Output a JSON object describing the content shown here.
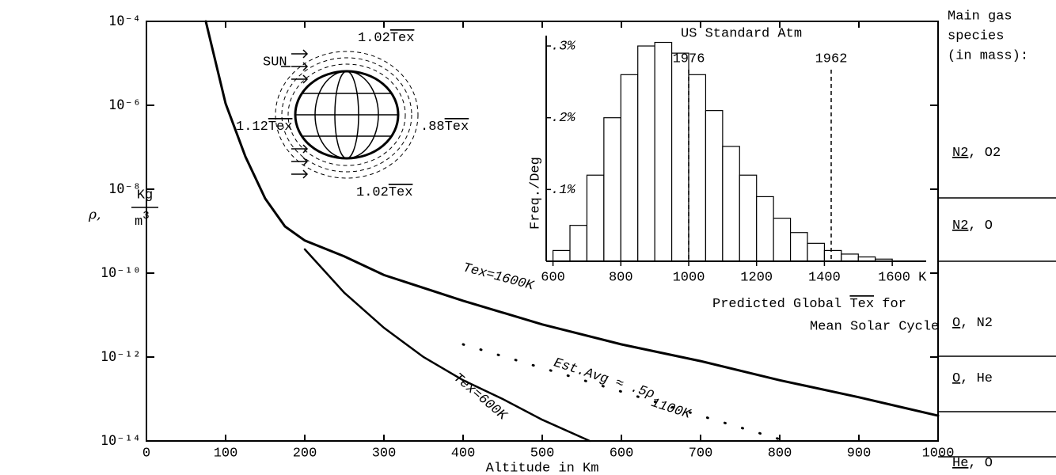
{
  "chart_data": [
    {
      "type": "line",
      "yscale": "log",
      "xlabel": "Altitude in Km",
      "ylabel": {
        "symbol": "ρ,",
        "numerator": "Kg",
        "denominator": "m",
        "exponent": "3"
      },
      "xlim": [
        0,
        1000
      ],
      "xticks": [
        0,
        100,
        200,
        300,
        400,
        500,
        600,
        700,
        800,
        900,
        1000
      ],
      "ylim": [
        1e-14,
        0.0001
      ],
      "yticks": [
        {
          "value": 1e-14,
          "label": "10⁻¹⁴"
        },
        {
          "value": 1e-12,
          "label": "10⁻¹²"
        },
        {
          "value": 1e-10,
          "label": "10⁻¹⁰"
        },
        {
          "value": 1e-08,
          "label": "10⁻⁸"
        },
        {
          "value": 1e-06,
          "label": "10⁻⁶"
        },
        {
          "value": 0.0001,
          "label": "10⁻⁴"
        }
      ],
      "series": [
        {
          "name": "Tex=1600K",
          "color": "#000000",
          "width": 3,
          "dash": "solid",
          "x": [
            75,
            100,
            125,
            150,
            175,
            200,
            250,
            300,
            400,
            500,
            600,
            700,
            800,
            900,
            1000
          ],
          "values": [
            0.0001,
            1.1e-06,
            6e-08,
            6e-09,
            1.3e-09,
            6e-10,
            2.5e-10,
            9e-11,
            2.2e-11,
            6e-12,
            2e-12,
            8e-13,
            2.8e-13,
            1.1e-13,
            4e-14
          ]
        },
        {
          "name": "Tex=600K",
          "color": "#000000",
          "width": 2.5,
          "dash": "solid",
          "x": [
            200,
            250,
            300,
            350,
            400,
            450,
            500,
            560
          ],
          "values": [
            3.7e-10,
            3.4e-11,
            5e-12,
            1e-12,
            2.8e-13,
            1e-13,
            3.2e-14,
            1e-14
          ]
        },
        {
          "name": "Est.Avg ≈ .5ρ",
          "name_subscript": "1100K",
          "color": "#000000",
          "width": 3,
          "dash": "dotted",
          "x": [
            400,
            500,
            600,
            700,
            800
          ],
          "values": [
            2e-12,
            5.5e-13,
            1.5e-13,
            4e-14,
            1.1e-14
          ]
        }
      ],
      "globe_labels": {
        "sun": "SUN",
        "top": {
          "prefix": "1.02",
          "overlined": "Tex"
        },
        "left": {
          "prefix": "1.12",
          "overlined": "Tex"
        },
        "right": {
          "prefix": ".88",
          "overlined": "Tex"
        },
        "bottom": {
          "prefix": "1.02",
          "overlined": "Tex"
        }
      },
      "species_title": [
        "Main gas",
        "species",
        "(in mass):"
      ],
      "species": [
        {
          "main": "N2",
          "other": ", O2"
        },
        {
          "main": "N2",
          "other": ", O"
        },
        {
          "main": "O",
          "other": ", N2"
        },
        {
          "main": "O",
          "other": ", He"
        },
        {
          "main": "He",
          "other": ", O"
        }
      ]
    },
    {
      "type": "histogram",
      "title": "US Standard Atm",
      "ylabel": "Freq./Deg",
      "xlabel": {
        "before": "Predicted Global ",
        "overlined": "Tex",
        "after": " for",
        "line2": "Mean Solar Cycle"
      },
      "bins": [
        600,
        650,
        700,
        750,
        800,
        850,
        900,
        950,
        1000,
        1050,
        1100,
        1150,
        1200,
        1250,
        1300,
        1350,
        1400,
        1450,
        1500,
        1550,
        1600
      ],
      "counts": [
        0.015,
        0.05,
        0.12,
        0.2,
        0.26,
        0.3,
        0.305,
        0.29,
        0.26,
        0.21,
        0.16,
        0.12,
        0.09,
        0.06,
        0.04,
        0.025,
        0.015,
        0.01,
        0.006,
        0.003
      ],
      "color": "#ffffff",
      "xlim": [
        580,
        1700
      ],
      "xticks": [
        600,
        800,
        1000,
        1200,
        1400,
        {
          "value": 1600,
          "label": "1600 K"
        }
      ],
      "ylim": [
        0,
        0.31
      ],
      "yticks": [
        {
          "value": 0.1,
          "label": ".1%"
        },
        {
          "value": 0.2,
          "label": ".2%"
        },
        {
          "value": 0.3,
          "label": ".3%"
        }
      ],
      "vlines": [
        {
          "value": 1000,
          "label": "1976"
        },
        {
          "value": 1420,
          "label": "1962"
        }
      ]
    }
  ]
}
